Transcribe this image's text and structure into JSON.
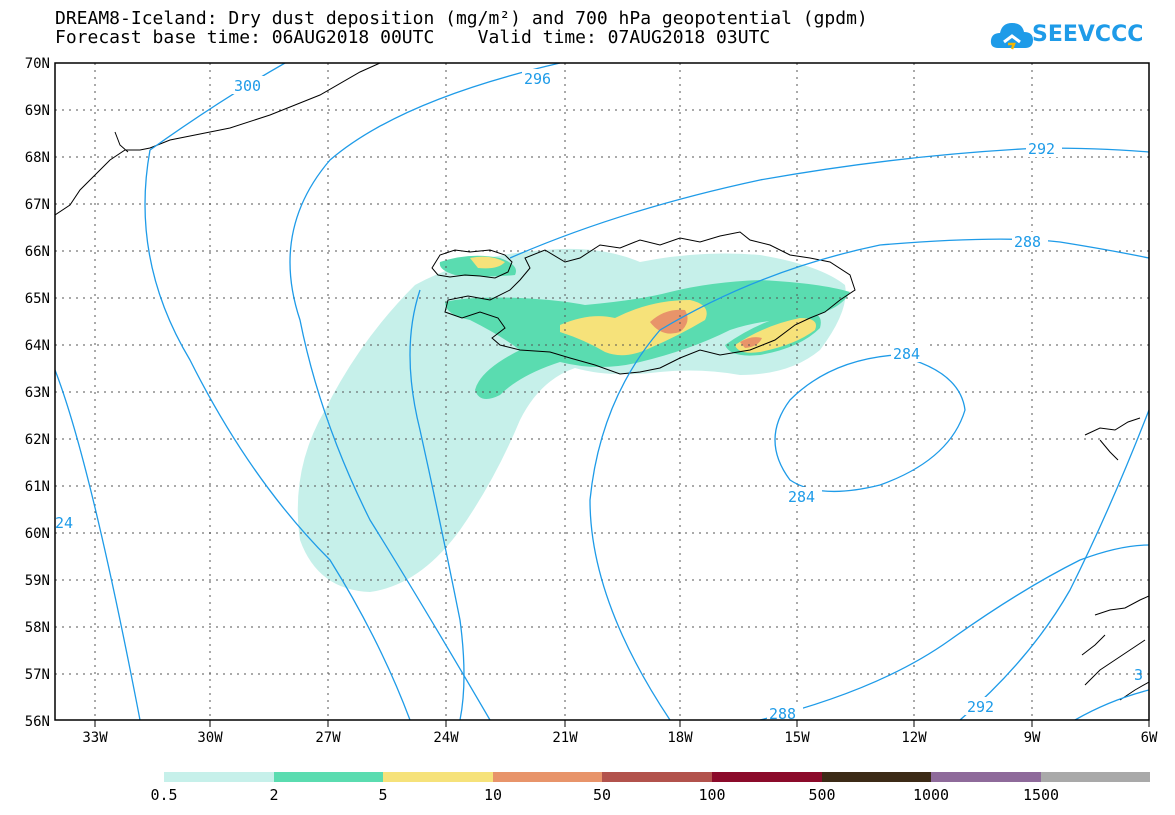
{
  "header": {
    "title_line1": "DREAM8-Iceland: Dry dust deposition (mg/m²) and 700 hPa geopotential (gpdm)",
    "title_line2": "Forecast base time: 06AUG2018 00UTC    Valid time: 07AUG2018 03UTC",
    "brand": "SEEVCCC"
  },
  "map": {
    "lon_ticks": [
      "33W",
      "30W",
      "27W",
      "24W",
      "21W",
      "18W",
      "15W",
      "12W",
      "9W",
      "6W"
    ],
    "lat_ticks": [
      "70N",
      "69N",
      "68N",
      "67N",
      "66N",
      "65N",
      "64N",
      "63N",
      "62N",
      "61N",
      "60N",
      "59N",
      "58N",
      "57N",
      "56N"
    ],
    "contour_labels": [
      "300",
      "296",
      "292",
      "288",
      "284",
      "284",
      "288",
      "292",
      "24",
      "3"
    ],
    "contour_color": "#1e9be8"
  },
  "colorbar": {
    "labels": [
      "0.5",
      "2",
      "5",
      "10",
      "50",
      "100",
      "500",
      "1000",
      "1500"
    ],
    "colors": [
      "#c6f0ea",
      "#5adcb0",
      "#f6e27a",
      "#e8946a",
      "#b2524c",
      "#8b0a2a",
      "#3c2a16",
      "#8e6a9a",
      "#a9a9a9"
    ]
  }
}
